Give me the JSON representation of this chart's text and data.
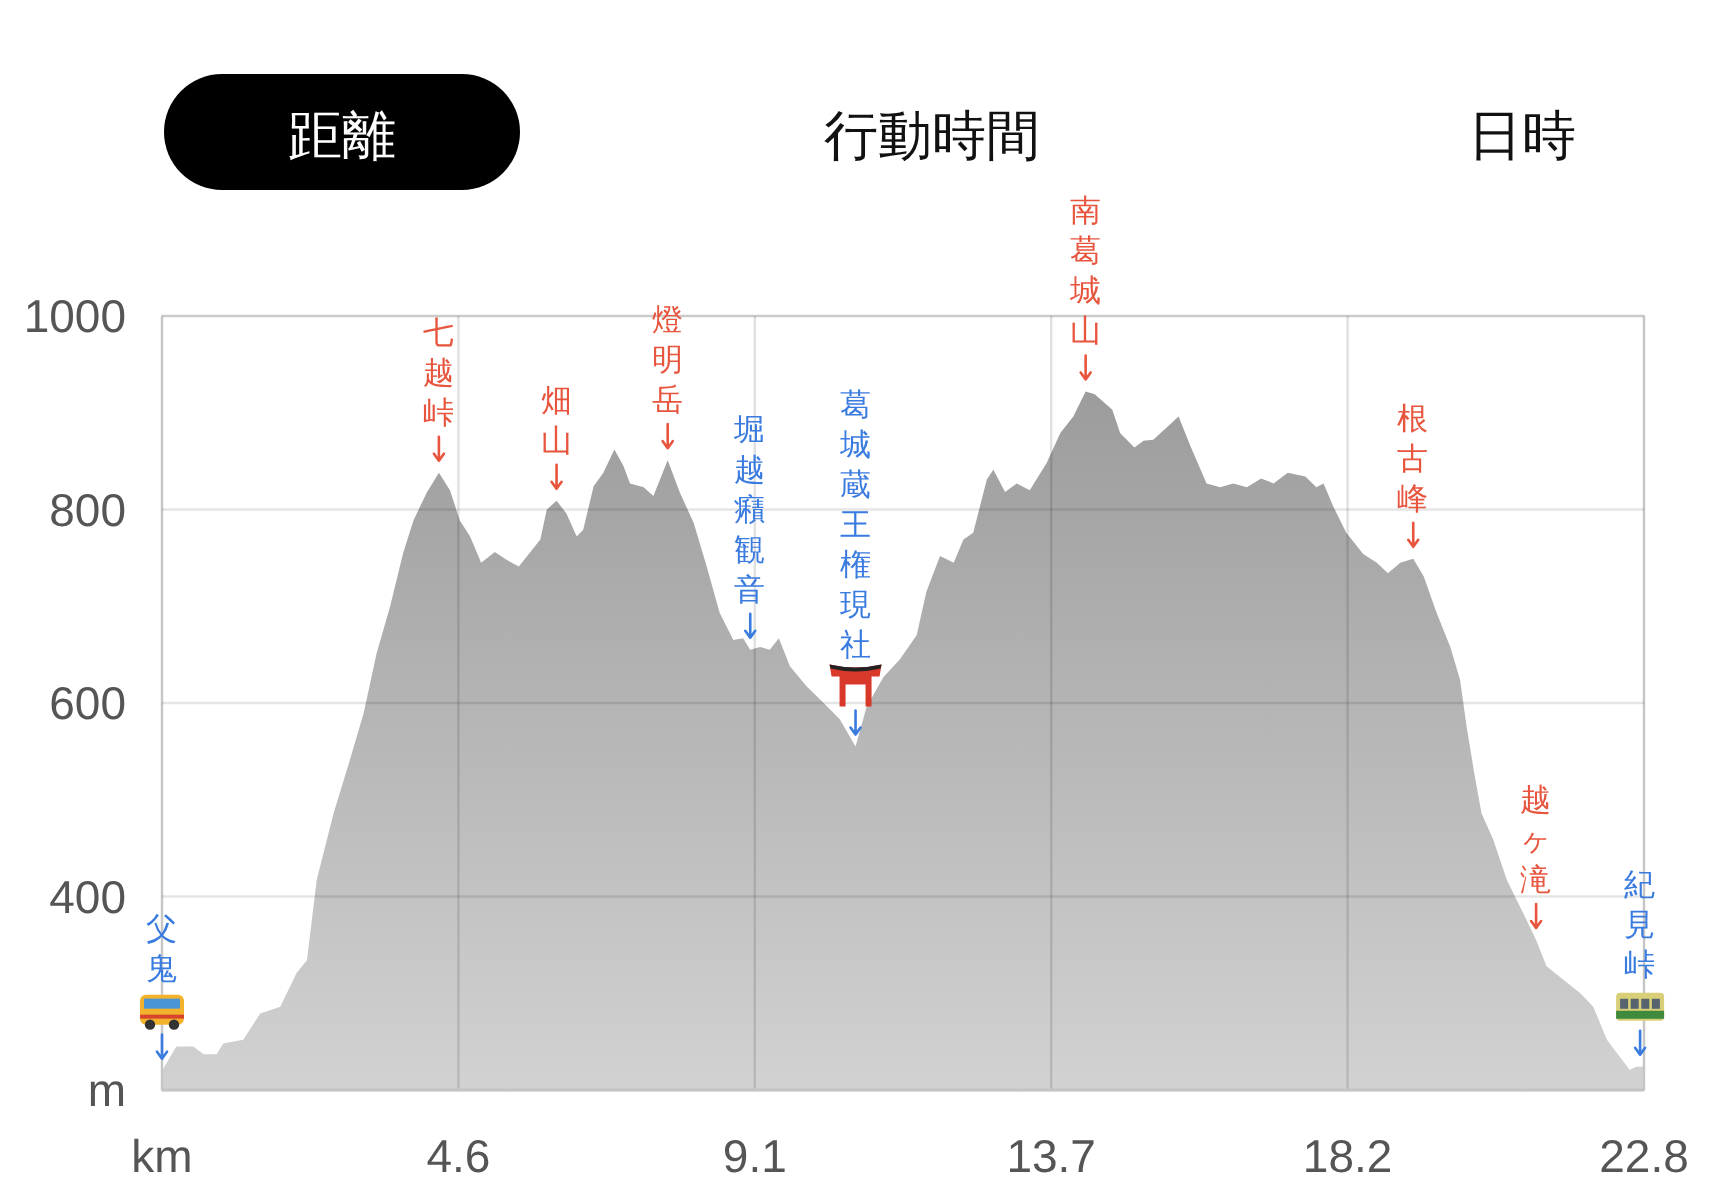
{
  "chart_data": {
    "type": "area",
    "x": [
      0,
      0.22,
      0.48,
      0.64,
      0.84,
      0.94,
      1.25,
      1.51,
      1.82,
      2.07,
      2.23,
      2.38,
      2.64,
      2.89,
      3.1,
      3.3,
      3.51,
      3.71,
      3.87,
      4.07,
      4.26,
      4.43,
      4.58,
      4.74,
      4.91,
      5.12,
      5.3,
      5.49,
      5.82,
      5.92,
      6.07,
      6.22,
      6.38,
      6.48,
      6.64,
      6.79,
      6.96,
      7.1,
      7.2,
      7.41,
      7.56,
      7.78,
      7.97,
      8.18,
      8.38,
      8.58,
      8.79,
      8.94,
      9.05,
      9.2,
      9.35,
      9.49,
      9.66,
      9.92,
      10.18,
      10.43,
      10.67,
      10.84,
      11.1,
      11.35,
      11.61,
      11.76,
      11.97,
      12.18,
      12.33,
      12.48,
      12.69,
      12.79,
      12.97,
      13.15,
      13.35,
      13.61,
      13.82,
      14.02,
      14.21,
      14.35,
      14.62,
      14.74,
      14.96,
      15.1,
      15.25,
      15.41,
      15.64,
      15.82,
      16.07,
      16.28,
      16.48,
      16.69,
      16.91,
      17.1,
      17.32,
      17.59,
      17.76,
      17.87,
      18.02,
      18.22,
      18.48,
      18.69,
      18.86,
      19.05,
      19.25,
      19.41,
      19.61,
      19.82,
      19.97,
      20.07,
      20.19,
      20.3,
      20.48,
      20.69,
      20.94,
      21.14,
      21.3,
      21.56,
      21.82,
      22.02,
      22.23,
      22.43,
      22.58,
      22.68,
      22.8
    ],
    "values": [
      220,
      245,
      245,
      237,
      237,
      248,
      252,
      279,
      286,
      321,
      334,
      417,
      486,
      541,
      589,
      651,
      700,
      755,
      789,
      817,
      838,
      820,
      789,
      772,
      745,
      756,
      748,
      741,
      769,
      800,
      809,
      796,
      772,
      779,
      824,
      838,
      862,
      845,
      827,
      823,
      814,
      851,
      817,
      786,
      741,
      693,
      665,
      667,
      655,
      658,
      655,
      667,
      638,
      617,
      600,
      583,
      555,
      596,
      627,
      645,
      670,
      715,
      752,
      745,
      769,
      776,
      831,
      841,
      818,
      827,
      820,
      848,
      879,
      896,
      922,
      919,
      903,
      879,
      864,
      871,
      872,
      882,
      896,
      866,
      827,
      823,
      827,
      823,
      832,
      827,
      838,
      834,
      823,
      827,
      803,
      776,
      754,
      745,
      734,
      745,
      749,
      731,
      693,
      658,
      624,
      576,
      527,
      486,
      459,
      417,
      383,
      355,
      328,
      314,
      300,
      286,
      252,
      234,
      221,
      224,
      224
    ],
    "color": "#9c9c9c",
    "xlim": [
      0,
      22.8
    ],
    "ylim": [
      200,
      1000
    ],
    "xticks": [
      {
        "value": 0,
        "label": "km"
      },
      {
        "value": 4.56,
        "label": "4.6"
      },
      {
        "value": 9.12,
        "label": "9.1"
      },
      {
        "value": 13.68,
        "label": "13.7"
      },
      {
        "value": 18.24,
        "label": "18.2"
      },
      22.8
    ],
    "yticks": [
      {
        "value": 200,
        "label": "m"
      },
      400,
      600,
      800,
      1000
    ],
    "grid": true,
    "annotations": [
      "距離",
      "行動時間",
      "日時",
      {
        "text": "父鬼",
        "x": 0,
        "y": 220
      },
      {
        "text": "七越峠",
        "x": 4.26,
        "y": 838
      },
      {
        "text": "畑山",
        "x": 6.07,
        "y": 809
      },
      {
        "text": "燈明岳",
        "x": 7.78,
        "y": 851
      },
      {
        "text": "堀越癪観音",
        "x": 9.05,
        "y": 655
      },
      {
        "text": "葛城蔵王権現社",
        "x": 10.67,
        "y": 555
      },
      {
        "text": "南葛城山",
        "x": 14.21,
        "y": 922
      },
      {
        "text": "根古峰",
        "x": 19.25,
        "y": 749
      },
      {
        "text": "越ヶ滝",
        "x": 21.14,
        "y": 355
      },
      {
        "text": "紀見峠",
        "x": 22.74,
        "y": 224
      }
    ]
  }
}
